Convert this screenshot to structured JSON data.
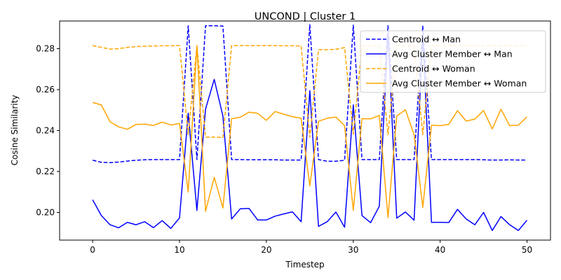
{
  "chart_data": {
    "type": "line",
    "title": "UNCOND | Cluster 1",
    "xlabel": "Timestep",
    "ylabel": "Cosine Similarity",
    "xlim": [
      -3.8,
      52.7
    ],
    "ylim": [
      0.1865,
      0.2935
    ],
    "xticks": [
      0,
      10,
      20,
      30,
      40,
      50
    ],
    "xtick_labels": [
      "0",
      "10",
      "20",
      "30",
      "40",
      "50"
    ],
    "yticks": [
      0.2,
      0.22,
      0.24,
      0.26,
      0.28
    ],
    "ytick_labels": [
      "0.20",
      "0.22",
      "0.24",
      "0.26",
      "0.28"
    ],
    "grid": false,
    "legend_position": "upper right",
    "x": [
      0,
      1,
      2,
      3,
      4,
      5,
      6,
      7,
      8,
      9,
      10,
      11,
      12,
      13,
      14,
      15,
      16,
      17,
      18,
      19,
      20,
      21,
      22,
      23,
      24,
      25,
      26,
      27,
      28,
      29,
      30,
      31,
      32,
      33,
      34,
      35,
      36,
      37,
      38,
      39,
      40,
      41,
      42,
      43,
      44,
      45,
      46,
      47,
      48,
      49,
      50
    ],
    "series": [
      {
        "name": "Centroid ↔ Man",
        "color": "#0000ff",
        "dash": true,
        "values": [
          0.2255,
          0.2245,
          0.2243,
          0.2246,
          0.2251,
          0.2255,
          0.2257,
          0.2258,
          0.2258,
          0.2258,
          0.2258,
          0.2912,
          0.2258,
          0.2912,
          0.2912,
          0.291,
          0.2258,
          0.2258,
          0.2257,
          0.2257,
          0.2257,
          0.2257,
          0.2256,
          0.2256,
          0.2256,
          0.2917,
          0.2258,
          0.225,
          0.225,
          0.2255,
          0.2915,
          0.2258,
          0.2258,
          0.2258,
          0.2912,
          0.2258,
          0.2258,
          0.2258,
          0.291,
          0.2258,
          0.2258,
          0.2258,
          0.2258,
          0.2258,
          0.2258,
          0.2257,
          0.2256,
          0.2256,
          0.2257,
          0.2256,
          0.2256
        ]
      },
      {
        "name": "Avg Cluster Member ↔ Man",
        "color": "#0000ff",
        "dash": false,
        "values": [
          0.2062,
          0.1985,
          0.194,
          0.1925,
          0.1952,
          0.194,
          0.1955,
          0.1926,
          0.196,
          0.1922,
          0.1973,
          0.2485,
          0.201,
          0.2505,
          0.265,
          0.247,
          0.1968,
          0.2018,
          0.202,
          0.1963,
          0.1963,
          0.1982,
          0.1993,
          0.2003,
          0.1955,
          0.2595,
          0.1932,
          0.1955,
          0.2002,
          0.1928,
          0.2525,
          0.1985,
          0.195,
          0.203,
          0.2872,
          0.1972,
          0.2002,
          0.1962,
          0.2862,
          0.1952,
          0.1952,
          0.1951,
          0.2015,
          0.1968,
          0.194,
          0.2,
          0.1912,
          0.198,
          0.194,
          0.1912,
          0.1962
        ]
      },
      {
        "name": "Centroid ↔ Woman",
        "color": "#ffa500",
        "dash": true,
        "values": [
          0.2815,
          0.2806,
          0.2798,
          0.28,
          0.2806,
          0.281,
          0.2812,
          0.2813,
          0.2814,
          0.2814,
          0.2815,
          0.238,
          0.2815,
          0.2368,
          0.2368,
          0.2366,
          0.2815,
          0.2815,
          0.2815,
          0.2815,
          0.2815,
          0.2815,
          0.2814,
          0.2814,
          0.2813,
          0.2368,
          0.2795,
          0.2795,
          0.2797,
          0.2805,
          0.2382,
          0.2812,
          0.2814,
          0.2815,
          0.238,
          0.2815,
          0.2815,
          0.2815,
          0.238,
          0.2815,
          0.2815,
          0.2815,
          0.2815,
          0.2815,
          0.2815,
          0.2815,
          0.2815,
          0.2815,
          0.2815,
          0.2815,
          0.2815
        ]
      },
      {
        "name": "Avg Cluster Member ↔ Woman",
        "color": "#ffa500",
        "dash": false,
        "values": [
          0.2537,
          0.2525,
          0.2443,
          0.2418,
          0.2406,
          0.243,
          0.2431,
          0.2425,
          0.2441,
          0.2427,
          0.2435,
          0.21,
          0.2815,
          0.2005,
          0.2172,
          0.2022,
          0.2458,
          0.2465,
          0.249,
          0.2484,
          0.245,
          0.2493,
          0.248,
          0.2468,
          0.246,
          0.213,
          0.2445,
          0.246,
          0.2466,
          0.2424,
          0.201,
          0.2458,
          0.2457,
          0.2474,
          0.1975,
          0.247,
          0.2502,
          0.238,
          0.2025,
          0.2426,
          0.2424,
          0.243,
          0.2497,
          0.2446,
          0.2456,
          0.2498,
          0.2408,
          0.2504,
          0.2424,
          0.2426,
          0.2467
        ]
      }
    ]
  }
}
